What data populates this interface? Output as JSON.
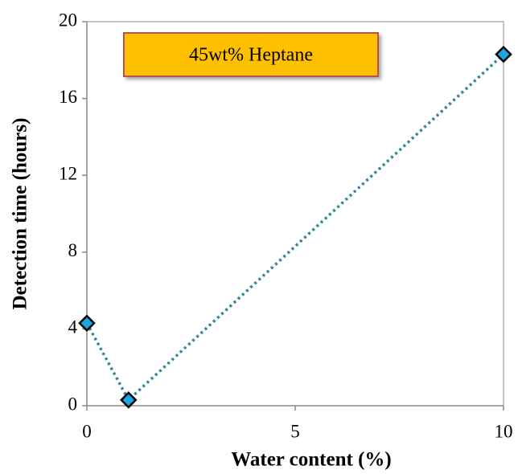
{
  "chart_data": {
    "type": "line",
    "annotation": "45wt% Heptane",
    "x_label": "Water content (%)",
    "y_label": "Detection time (hours)",
    "x": [
      0,
      1,
      10
    ],
    "values": [
      4.3,
      0.3,
      18.3
    ],
    "color": "#31859c",
    "marker_color": "#1ba6e0",
    "annotation_color": "#ffc000",
    "annotation_border": "#c0504d",
    "xlim": [
      0,
      10
    ],
    "xticks": [
      0,
      5,
      10
    ],
    "ylim": [
      0,
      20
    ],
    "yticks": [
      0,
      4,
      8,
      12,
      16,
      20
    ]
  }
}
